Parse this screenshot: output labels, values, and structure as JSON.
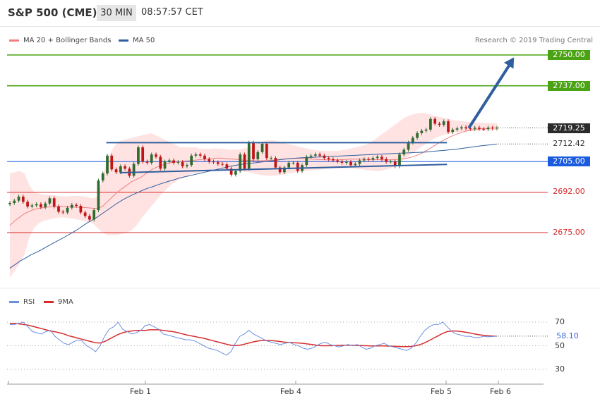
{
  "header": {
    "title": "S&P 500 (CME)",
    "timeframe": "30 MIN",
    "time": "08:57:57 CET"
  },
  "legend": {
    "ma20": "MA 20 + Bollinger Bands",
    "ma50": "MA 50",
    "credit": "Research © 2019 Trading Central",
    "rsi": "RSI",
    "ma9": "9MA"
  },
  "colors": {
    "green": "#4aa313",
    "blue": "#1a5be0",
    "red": "#d62b2b",
    "candleUp": "#2f6b2f",
    "candleDown": "#c01515",
    "band": "#ffd6d6",
    "ma50": "#2f5f9e"
  },
  "price_labels": {
    "l2750": "2750.00",
    "l2737": "2737.00",
    "l2719": "2719.25",
    "l2712": "2712.42",
    "l2705": "2705.00",
    "l2692": "2692.00",
    "l2675": "2675.00"
  },
  "rsi_labels": {
    "t70": "70",
    "t50": "50",
    "t30": "30",
    "value": "58.10"
  },
  "x_labels": [
    "Feb 1",
    "Feb 4",
    "Feb 5",
    "Feb 6"
  ],
  "chart_data": {
    "type": "candlestick",
    "ylim": [
      2650,
      2765
    ],
    "levels": [
      {
        "value": 2750.0,
        "style": "resistance",
        "color": "green"
      },
      {
        "value": 2737.0,
        "style": "resistance",
        "color": "green"
      },
      {
        "value": 2705.0,
        "style": "pivot",
        "color": "blue"
      },
      {
        "value": 2692.0,
        "style": "support",
        "color": "red"
      },
      {
        "value": 2675.0,
        "style": "support",
        "color": "red"
      }
    ],
    "last_price": 2719.25,
    "ma50_last": 2712.42,
    "closes": [
      2687.5,
      2688.5,
      2690.2,
      2688.0,
      2686.0,
      2686.5,
      2687.0,
      2685.7,
      2687.3,
      2689.5,
      2686.0,
      2683.8,
      2683.5,
      2685.5,
      2686.7,
      2686.3,
      2683.5,
      2682.0,
      2680.5,
      2684.5,
      2697.0,
      2700.0,
      2707.5,
      2701.7,
      2700.5,
      2703.0,
      2702.0,
      2699.0,
      2704.0,
      2711.0,
      2705.0,
      2704.5,
      2708.0,
      2707.0,
      2702.0,
      2705.0,
      2705.5,
      2704.5,
      2704.8,
      2703.0,
      2703.5,
      2707.5,
      2708.0,
      2707.5,
      2706.0,
      2705.0,
      2704.7,
      2704.0,
      2703.8,
      2702.0,
      2699.5,
      2701.0,
      2708.0,
      2702.0,
      2713.0,
      2706.0,
      2709.0,
      2712.5,
      2706.5,
      2706.5,
      2702.5,
      2700.5,
      2702.5,
      2704.5,
      2704.5,
      2701.0,
      2703.5,
      2707.0,
      2707.5,
      2708.0,
      2707.5,
      2706.5,
      2706.0,
      2705.5,
      2705.0,
      2704.5,
      2704.8,
      2703.5,
      2704.0,
      2705.5,
      2706.0,
      2705.8,
      2706.5,
      2707.0,
      2706.0,
      2705.0,
      2705.0,
      2703.0,
      2708.0,
      2710.0,
      2713.0,
      2715.0,
      2717.0,
      2718.0,
      2718.5,
      2723.0,
      2721.0,
      2720.5,
      2722.0,
      2717.5,
      2718.5,
      2719.0,
      2719.5,
      2719.0,
      2718.8,
      2719.3,
      2718.8,
      2718.7,
      2719.3,
      2719.0,
      2719.25
    ],
    "ma50": [
      2660,
      2661.5,
      2663,
      2664.2,
      2665.5,
      2666.5,
      2667.6,
      2668.8,
      2670,
      2671.2,
      2672.3,
      2673.5,
      2674.8,
      2676,
      2677.5,
      2679,
      2680.2,
      2681.5,
      2683,
      2684.5,
      2686,
      2687.5,
      2688.8,
      2690,
      2691,
      2692,
      2693,
      2693.8,
      2694.5,
      2695.3,
      2696,
      2696.7,
      2697.3,
      2698,
      2698.5,
      2699,
      2699.5,
      2700,
      2700.5,
      2701,
      2701.5,
      2702,
      2702.5,
      2703,
      2703.4,
      2703.8,
      2704,
      2704.3,
      2704.5,
      2704.8,
      2705,
      2705.3,
      2705.6,
      2705.9,
      2706.1,
      2706.3,
      2706.5,
      2706.6,
      2706.7,
      2706.8,
      2706.9,
      2707,
      2707.1,
      2707.2,
      2707.3,
      2707.4,
      2707.5,
      2707.6,
      2707.7,
      2707.8,
      2707.9,
      2708.0,
      2708.1,
      2708.2,
      2708.3,
      2708.4,
      2708.5,
      2708.6,
      2708.7,
      2708.8,
      2708.9,
      2709.0,
      2709.2,
      2709.4,
      2709.6,
      2709.8,
      2710.0,
      2710.2,
      2710.5,
      2710.8,
      2711.1,
      2711.4,
      2711.7,
      2711.9,
      2712.1,
      2712.42
    ],
    "ma20": [
      2678,
      2680,
      2681.5,
      2683,
      2684,
      2684.8,
      2685.3,
      2685.6,
      2685.8,
      2686,
      2686.1,
      2686.0,
      2685.9,
      2685.8,
      2685.7,
      2685.6,
      2685.5,
      2685.3,
      2685.2,
      2686,
      2688,
      2690,
      2692,
      2693.5,
      2695,
      2696.5,
      2697.5,
      2698.5,
      2700,
      2701.5,
      2702.5,
      2703.3,
      2704,
      2704.5,
      2704.8,
      2705,
      2705.2,
      2705.4,
      2705.6,
      2705.8,
      2706,
      2706.2,
      2706.4,
      2706.5,
      2706.3,
      2706.1,
      2706,
      2705.8,
      2705.6,
      2705.5,
      2705.4,
      2705.3,
      2705.4,
      2705.5,
      2705.6,
      2705.8,
      2706,
      2706.2,
      2706.3,
      2706.4,
      2706.3,
      2706.1,
      2706,
      2705.9,
      2705.8,
      2705.7,
      2705.7,
      2705.7,
      2705.8,
      2705.9,
      2706.0,
      2706.0,
      2706.0,
      2706.0,
      2705.9,
      2705.8,
      2705.8,
      2705.7,
      2705.7,
      2705.8,
      2706.0,
      2706.2,
      2706.6,
      2707.2,
      2708.0,
      2709.0,
      2710.2,
      2711.5,
      2712.8,
      2714.0,
      2715.0,
      2716.0,
      2716.8,
      2717.5,
      2718.0,
      2718.4,
      2718.7,
      2718.9,
      2719.0,
      2719.1,
      2719.2
    ],
    "bb_upper": [
      2700,
      2700.5,
      2701,
      2700,
      2695,
      2692,
      2691.5,
      2691,
      2691,
      2690.8,
      2690.5,
      2690.3,
      2690.3,
      2690.5,
      2690.5,
      2690.3,
      2690,
      2689.5,
      2690,
      2698,
      2706,
      2710,
      2713,
      2714,
      2714.5,
      2715,
      2715.5,
      2716,
      2716.5,
      2717,
      2716,
      2715,
      2714,
      2713,
      2712,
      2711,
      2711,
      2711,
      2711,
      2710.5,
      2710.3,
      2710.3,
      2710.5,
      2710.5,
      2710.3,
      2710,
      2710,
      2710,
      2710.5,
      2711,
      2712,
      2713,
      2713.5,
      2714,
      2714,
      2713.5,
      2713,
      2712.5,
      2712,
      2711.5,
      2711,
      2710.5,
      2710,
      2709.8,
      2709.6,
      2709.5,
      2709.5,
      2709.5,
      2709.7,
      2710,
      2710.5,
      2711,
      2711.5,
      2712,
      2713,
      2714.5,
      2716,
      2717.5,
      2719,
      2720.5,
      2722,
      2723.5,
      2724.5,
      2725,
      2725.5,
      2725.5,
      2725,
      2724.5,
      2724,
      2723.5,
      2723,
      2722.5,
      2722.2,
      2722,
      2721.8,
      2721.6,
      2721.5,
      2721.4,
      2721.3,
      2721.3,
      2721.2
    ],
    "bb_lower": [
      2656,
      2659,
      2662,
      2666,
      2673,
      2677,
      2679,
      2680,
      2680.5,
      2681,
      2681.3,
      2681.5,
      2681.2,
      2680.8,
      2680.5,
      2680,
      2679.5,
      2679,
      2677,
      2675,
      2674,
      2674,
      2674,
      2674.5,
      2675,
      2676,
      2678,
      2681,
      2683.5,
      2686,
      2688.5,
      2691,
      2693,
      2695,
      2696.5,
      2697.5,
      2698.5,
      2699.5,
      2700,
      2700.5,
      2700.8,
      2701,
      2701.3,
      2701.5,
      2701.5,
      2701.4,
      2701.2,
      2701,
      2700.8,
      2700.5,
      2700,
      2699.5,
      2699.2,
      2699,
      2699,
      2699.2,
      2699.5,
      2700,
      2700.3,
      2700.6,
      2700.8,
      2701,
      2701.3,
      2701.5,
      2701.7,
      2701.9,
      2702,
      2702.1,
      2702.2,
      2702.2,
      2702.1,
      2702,
      2701.8,
      2701.5,
      2701.2,
      2701,
      2701,
      2701.5,
      2702,
      2703,
      2704.5,
      2706,
      2707.5,
      2709,
      2710.5,
      2712,
      2713.5,
      2714.5,
      2715.5,
      2716.2,
      2716.8,
      2717.2,
      2717.5,
      2717.7,
      2717.8,
      2717.9,
      2718.0,
      2718.0,
      2718.1,
      2718.1,
      2718.2
    ],
    "trendlines": [
      {
        "name": "resistance",
        "from": [
          0.185,
          2713.0
        ],
        "to": [
          0.82,
          2713.0
        ]
      },
      {
        "name": "support",
        "from": [
          0.21,
          2700.3
        ],
        "to": [
          0.82,
          2703.8
        ]
      },
      {
        "name": "projection",
        "from": [
          0.862,
          2719.6
        ],
        "to": [
          0.945,
          2749.0
        ]
      }
    ],
    "rsi": [
      68,
      68,
      69,
      70,
      66,
      62,
      61,
      60,
      62,
      63,
      58,
      55,
      52,
      51,
      53,
      55,
      54,
      50,
      48,
      45,
      50,
      58,
      64,
      66,
      70,
      64,
      62,
      60,
      61,
      63,
      67,
      68,
      66,
      64,
      60,
      59,
      58,
      57,
      56,
      55,
      55,
      54,
      52,
      50,
      48,
      47,
      46,
      44,
      42,
      45,
      52,
      58,
      60,
      63,
      60,
      58,
      56,
      54,
      53,
      52,
      51,
      52,
      53,
      51,
      50,
      48,
      47,
      48,
      50,
      52,
      53,
      51,
      50,
      49,
      50,
      51,
      50,
      51,
      49,
      47,
      48,
      50,
      51,
      52,
      50,
      49,
      48,
      47,
      46,
      48,
      52,
      58,
      63,
      66,
      68,
      68,
      70,
      66,
      62,
      60,
      59,
      58,
      58,
      57,
      57,
      58,
      57.5,
      57.8,
      58.1
    ],
    "rsi_ma9": [
      69,
      69,
      68.5,
      68,
      67.5,
      66.5,
      65.5,
      64.5,
      63.5,
      62.5,
      61.8,
      61,
      60,
      58.5,
      57.5,
      56.5,
      55.5,
      54.5,
      53.5,
      52.5,
      52.3,
      53.5,
      55.5,
      57.5,
      59.5,
      61,
      62,
      62.5,
      63,
      63,
      63,
      63.5,
      63.5,
      63.5,
      63,
      62.5,
      62,
      61.3,
      60.3,
      59.3,
      58.5,
      57.8,
      57,
      56.3,
      55.3,
      54.3,
      53.3,
      52.3,
      51.3,
      50.5,
      50.2,
      50.5,
      51.3,
      52.3,
      53.3,
      54,
      54.5,
      54.5,
      54.3,
      54,
      53.5,
      53,
      52.8,
      52.5,
      52.3,
      52,
      51.5,
      51,
      50.5,
      50,
      50,
      50,
      50.1,
      50.3,
      50.5,
      50.5,
      50.4,
      50.3,
      50.2,
      50,
      49.8,
      49.8,
      49.8,
      49.8,
      49.7,
      49.6,
      49.4,
      49.2,
      49.2,
      49.4,
      50,
      51,
      52.5,
      54.5,
      56.5,
      58.5,
      60.5,
      62,
      62.5,
      62.5,
      62,
      61.5,
      60.8,
      60,
      59.3,
      58.8,
      58.4,
      58.2,
      58.1
    ]
  }
}
